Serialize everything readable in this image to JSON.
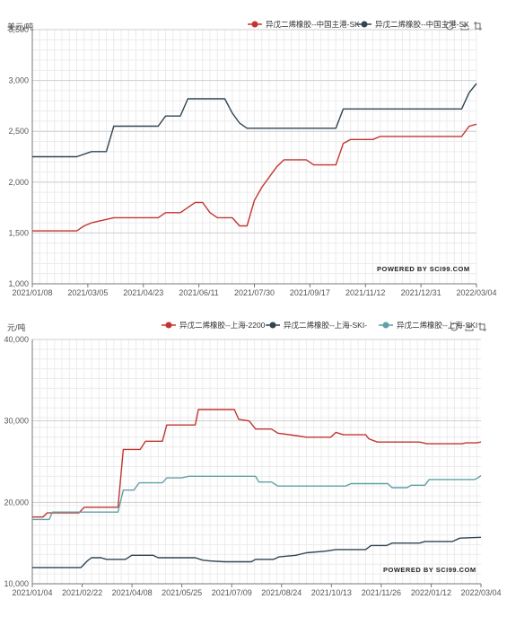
{
  "chart_data": [
    {
      "type": "line",
      "title": "",
      "ylabel": "美元/吨",
      "xlabel": "",
      "ylim": [
        1000,
        3500
      ],
      "yticks": [
        1000,
        1500,
        2000,
        2500,
        3000,
        3500
      ],
      "ytick_labels": [
        "1,000",
        "1,500",
        "2,000",
        "2,500",
        "3,000",
        "3,500"
      ],
      "xlim": [
        "2021/01/08",
        "2022/03/04"
      ],
      "x_tick_labels": [
        "2021/01/08",
        "2021/03/05",
        "2021/04/23",
        "2021/06/11",
        "2021/07/30",
        "2021/09/17",
        "2021/11/12",
        "2021/12/31",
        "2022/03/04"
      ],
      "grid": true,
      "legend_position": "top-right",
      "series": [
        {
          "name": "异戊二烯橡胶--中国主港-SK",
          "color": "#c23531",
          "points": [
            [
              "2021/01/08",
              1520
            ],
            [
              "2021/02/19",
              1520
            ],
            [
              "2021/02/26",
              1570
            ],
            [
              "2021/03/05",
              1600
            ],
            [
              "2021/03/26",
              1650
            ],
            [
              "2021/05/07",
              1650
            ],
            [
              "2021/05/14",
              1700
            ],
            [
              "2021/05/28",
              1700
            ],
            [
              "2021/06/11",
              1800
            ],
            [
              "2021/06/18",
              1800
            ],
            [
              "2021/06/25",
              1700
            ],
            [
              "2021/07/02",
              1650
            ],
            [
              "2021/07/16",
              1650
            ],
            [
              "2021/07/23",
              1570
            ],
            [
              "2021/07/30",
              1570
            ],
            [
              "2021/08/06",
              1820
            ],
            [
              "2021/08/13",
              1950
            ],
            [
              "2021/08/27",
              2150
            ],
            [
              "2021/09/03",
              2220
            ],
            [
              "2021/09/24",
              2220
            ],
            [
              "2021/10/01",
              2170
            ],
            [
              "2021/10/22",
              2170
            ],
            [
              "2021/10/29",
              2380
            ],
            [
              "2021/11/05",
              2420
            ],
            [
              "2021/11/26",
              2420
            ],
            [
              "2021/12/03",
              2450
            ],
            [
              "2022/02/18",
              2450
            ],
            [
              "2022/02/25",
              2550
            ],
            [
              "2022/03/04",
              2570
            ]
          ]
        },
        {
          "name": "异戊二烯橡胶--中国主港-SK",
          "color": "#2f4554",
          "points": [
            [
              "2021/01/08",
              2250
            ],
            [
              "2021/02/19",
              2250
            ],
            [
              "2021/03/05",
              2300
            ],
            [
              "2021/03/19",
              2300
            ],
            [
              "2021/03/26",
              2550
            ],
            [
              "2021/05/07",
              2550
            ],
            [
              "2021/05/14",
              2650
            ],
            [
              "2021/05/28",
              2650
            ],
            [
              "2021/06/04",
              2820
            ],
            [
              "2021/07/09",
              2820
            ],
            [
              "2021/07/16",
              2680
            ],
            [
              "2021/07/23",
              2580
            ],
            [
              "2021/07/30",
              2530
            ],
            [
              "2021/10/22",
              2530
            ],
            [
              "2021/10/29",
              2720
            ],
            [
              "2022/02/18",
              2720
            ],
            [
              "2022/02/25",
              2880
            ],
            [
              "2022/03/04",
              2970
            ]
          ]
        }
      ],
      "watermark": "POWERED BY SCI99.COM"
    },
    {
      "type": "line",
      "title": "",
      "ylabel": "元/吨",
      "xlabel": "",
      "ylim": [
        10000,
        40000
      ],
      "yticks": [
        10000,
        20000,
        30000,
        40000
      ],
      "ytick_labels": [
        "10,000",
        "20,000",
        "30,000",
        "40,000"
      ],
      "xlim": [
        "2021/01/04",
        "2022/03/04"
      ],
      "x_tick_labels": [
        "2021/01/04",
        "2021/02/22",
        "2021/04/08",
        "2021/05/25",
        "2021/07/09",
        "2021/08/24",
        "2021/10/13",
        "2021/11/26",
        "2022/01/12",
        "2022/03/04"
      ],
      "grid": true,
      "legend_position": "top-right",
      "series": [
        {
          "name": "异戊二烯橡胶--上海-2200",
          "color": "#c23531",
          "points": [
            [
              "2021/01/04",
              18200
            ],
            [
              "2021/01/14",
              18200
            ],
            [
              "2021/01/18",
              18700
            ],
            [
              "2021/02/17",
              18700
            ],
            [
              "2021/02/22",
              19400
            ],
            [
              "2021/03/26",
              19400
            ],
            [
              "2021/03/31",
              26500
            ],
            [
              "2021/04/16",
              26500
            ],
            [
              "2021/04/21",
              27500
            ],
            [
              "2021/05/07",
              27500
            ],
            [
              "2021/05/11",
              29500
            ],
            [
              "2021/06/07",
              29500
            ],
            [
              "2021/06/10",
              31400
            ],
            [
              "2021/07/14",
              31400
            ],
            [
              "2021/07/18",
              30200
            ],
            [
              "2021/07/28",
              30000
            ],
            [
              "2021/08/03",
              29000
            ],
            [
              "2021/08/18",
              29000
            ],
            [
              "2021/08/24",
              28500
            ],
            [
              "2021/09/10",
              28200
            ],
            [
              "2021/09/20",
              28000
            ],
            [
              "2021/10/13",
              28000
            ],
            [
              "2021/10/18",
              28600
            ],
            [
              "2021/10/25",
              28300
            ],
            [
              "2021/11/15",
              28300
            ],
            [
              "2021/11/18",
              27800
            ],
            [
              "2021/11/26",
              27400
            ],
            [
              "2022/01/05",
              27400
            ],
            [
              "2022/01/12",
              27200
            ],
            [
              "2022/02/14",
              27200
            ],
            [
              "2022/02/18",
              27300
            ],
            [
              "2022/02/28",
              27300
            ],
            [
              "2022/03/04",
              27400
            ]
          ]
        },
        {
          "name": "异戊二烯橡胶--上海-SKI-",
          "color": "#2f4554",
          "points": [
            [
              "2021/01/04",
              12000
            ],
            [
              "2021/02/19",
              12000
            ],
            [
              "2021/02/25",
              12800
            ],
            [
              "2021/03/01",
              13200
            ],
            [
              "2021/03/10",
              13200
            ],
            [
              "2021/03/15",
              13000
            ],
            [
              "2021/04/02",
              13000
            ],
            [
              "2021/04/08",
              13500
            ],
            [
              "2021/04/28",
              13500
            ],
            [
              "2021/05/03",
              13200
            ],
            [
              "2021/06/07",
              13200
            ],
            [
              "2021/06/14",
              12900
            ],
            [
              "2021/06/21",
              12800
            ],
            [
              "2021/07/05",
              12700
            ],
            [
              "2021/07/30",
              12700
            ],
            [
              "2021/08/03",
              13000
            ],
            [
              "2021/08/20",
              13000
            ],
            [
              "2021/08/25",
              13300
            ],
            [
              "2021/09/10",
              13500
            ],
            [
              "2021/09/20",
              13800
            ],
            [
              "2021/10/08",
              14000
            ],
            [
              "2021/10/18",
              14200
            ],
            [
              "2021/11/15",
              14200
            ],
            [
              "2021/11/20",
              14700
            ],
            [
              "2021/12/05",
              14700
            ],
            [
              "2021/12/10",
              15000
            ],
            [
              "2022/01/05",
              15000
            ],
            [
              "2022/01/10",
              15200
            ],
            [
              "2022/02/05",
              15200
            ],
            [
              "2022/02/12",
              15600
            ],
            [
              "2022/03/04",
              15700
            ]
          ]
        },
        {
          "name": "异戊二烯橡胶--上海-SKI",
          "color": "#61a0a8",
          "points": [
            [
              "2021/01/04",
              17900
            ],
            [
              "2021/01/20",
              17900
            ],
            [
              "2021/01/23",
              18800
            ],
            [
              "2021/03/26",
              18800
            ],
            [
              "2021/03/31",
              21500
            ],
            [
              "2021/04/10",
              21500
            ],
            [
              "2021/04/15",
              22400
            ],
            [
              "2021/05/07",
              22400
            ],
            [
              "2021/05/11",
              23000
            ],
            [
              "2021/05/25",
              23000
            ],
            [
              "2021/06/01",
              23200
            ],
            [
              "2021/08/03",
              23200
            ],
            [
              "2021/08/06",
              22500
            ],
            [
              "2021/08/18",
              22500
            ],
            [
              "2021/08/24",
              22000
            ],
            [
              "2021/10/27",
              22000
            ],
            [
              "2021/11/01",
              22300
            ],
            [
              "2021/12/06",
              22300
            ],
            [
              "2021/12/10",
              21800
            ],
            [
              "2021/12/24",
              21800
            ],
            [
              "2021/12/28",
              22100
            ],
            [
              "2022/01/10",
              22100
            ],
            [
              "2022/01/14",
              22800
            ],
            [
              "2022/02/26",
              22800
            ],
            [
              "2022/03/01",
              23000
            ],
            [
              "2022/03/04",
              23300
            ]
          ]
        }
      ],
      "watermark": "POWERED BY SCI99.COM"
    }
  ]
}
